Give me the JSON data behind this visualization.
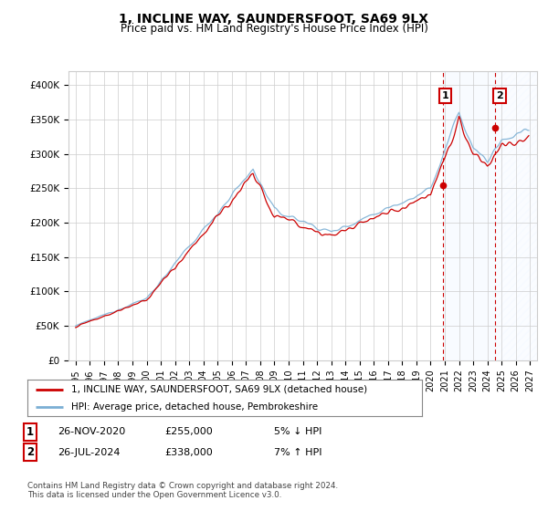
{
  "title": "1, INCLINE WAY, SAUNDERSFOOT, SA69 9LX",
  "subtitle": "Price paid vs. HM Land Registry's House Price Index (HPI)",
  "ylabel_ticks": [
    "£0",
    "£50K",
    "£100K",
    "£150K",
    "£200K",
    "£250K",
    "£300K",
    "£350K",
    "£400K"
  ],
  "ytick_values": [
    0,
    50000,
    100000,
    150000,
    200000,
    250000,
    300000,
    350000,
    400000
  ],
  "ylim": [
    0,
    420000
  ],
  "xlim_start": 1994.5,
  "xlim_end": 2027.5,
  "xticks": [
    1995,
    1996,
    1997,
    1998,
    1999,
    2000,
    2001,
    2002,
    2003,
    2004,
    2005,
    2006,
    2007,
    2008,
    2009,
    2010,
    2011,
    2012,
    2013,
    2014,
    2015,
    2016,
    2017,
    2018,
    2019,
    2020,
    2021,
    2022,
    2023,
    2024,
    2025,
    2026,
    2027
  ],
  "hpi_color": "#7bafd4",
  "price_color": "#cc0000",
  "shade_color": "#ddeeff",
  "dashed_line_color": "#cc0000",
  "legend_label_price": "1, INCLINE WAY, SAUNDERSFOOT, SA69 9LX (detached house)",
  "legend_label_hpi": "HPI: Average price, detached house, Pembrokeshire",
  "purchase1_date": "26-NOV-2020",
  "purchase1_price": "£255,000",
  "purchase1_hpi": "5% ↓ HPI",
  "purchase2_date": "26-JUL-2024",
  "purchase2_price": "£338,000",
  "purchase2_hpi": "7% ↑ HPI",
  "footer": "Contains HM Land Registry data © Crown copyright and database right 2024.\nThis data is licensed under the Open Government Licence v3.0.",
  "purchase1_x": 2020.9,
  "purchase1_y": 255000,
  "purchase2_x": 2024.57,
  "purchase2_y": 338000
}
